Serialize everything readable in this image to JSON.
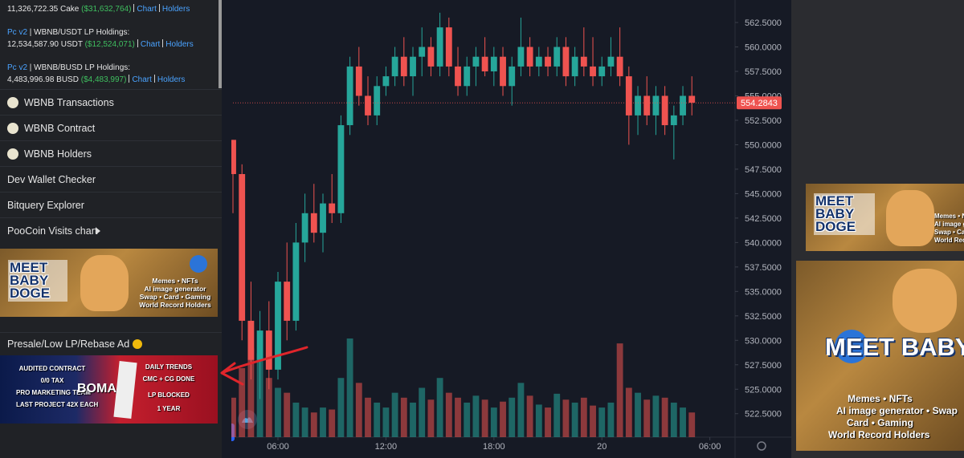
{
  "sidebar": {
    "holdings": [
      {
        "line": "11,326,722.35 Cake",
        "usd": "($31,632,764)",
        "links": [
          "Chart",
          "Holders"
        ]
      },
      {
        "source": "Pc v2",
        "title": "| WBNB/USDT LP Holdings:",
        "line": "12,534,587.90 USDT",
        "usd": "($12,524,071)",
        "links": [
          "Chart",
          "Holders"
        ]
      },
      {
        "source": "Pc v2",
        "title": "| WBNB/BUSD LP Holdings:",
        "line": "4,483,996.98 BUSD",
        "usd": "($4,483,997)",
        "links": [
          "Chart",
          "Holders"
        ]
      }
    ],
    "menu": [
      "WBNB Transactions",
      "WBNB Contract",
      "WBNB Holders",
      "Dev Wallet Checker",
      "Bitquery Explorer",
      "PooCoin Visits chart"
    ],
    "ad1": {
      "title": "MEET BABY DOGE",
      "lines": [
        "Memes • NFTs",
        "AI image generator",
        "Swap • Card • Gaming",
        "World Record Holders"
      ]
    },
    "presale_title": "Presale/Low LP/Rebase Ad",
    "ad2": {
      "left": [
        "AUDITED CONTRACT",
        "0/0 TAX",
        "PRO MARKETING TEAM",
        "LAST PROJECT 42X EACH"
      ],
      "brand": "BOMA",
      "right": [
        "DAILY TRENDS",
        "CMC + CG DONE",
        "LP BLOCKED",
        "1 YEAR"
      ]
    }
  },
  "right_ads": [
    {
      "title": "MEET BABY DOGE",
      "lines": [
        "Memes • NFTs",
        "AI image generator",
        "Swap • Card • Gaming",
        "World Record Holders"
      ]
    },
    {
      "title": "MEET BABY DOGE",
      "lines": [
        "Memes • NFTs",
        "AI image generator • Swap",
        "Card • Gaming",
        "World Record Holders"
      ]
    }
  ],
  "chart_data": {
    "type": "candlestick",
    "xlim": [
      3.5,
      31.4
    ],
    "xticks": [
      {
        "value": 6,
        "label": "06:00"
      },
      {
        "value": 12,
        "label": "12:00"
      },
      {
        "value": 18,
        "label": "18:00"
      },
      {
        "value": 24,
        "label": "20"
      },
      {
        "value": 30,
        "label": "06:00"
      }
    ],
    "ylim": [
      520.1,
      564.8
    ],
    "yticks": [
      {
        "value": 522.5,
        "label": "522.5000"
      },
      {
        "value": 525,
        "label": "525.0000"
      },
      {
        "value": 527.5,
        "label": "527.5000"
      },
      {
        "value": 530,
        "label": "530.0000"
      },
      {
        "value": 532.5,
        "label": "532.5000"
      },
      {
        "value": 535,
        "label": "535.0000"
      },
      {
        "value": 537.5,
        "label": "537.5000"
      },
      {
        "value": 540,
        "label": "540.0000"
      },
      {
        "value": 542.5,
        "label": "542.5000"
      },
      {
        "value": 545,
        "label": "545.0000"
      },
      {
        "value": 547.5,
        "label": "547.5000"
      },
      {
        "value": 550,
        "label": "550.0000"
      },
      {
        "value": 552.5,
        "label": "552.5000"
      },
      {
        "value": 555,
        "label": "555.0000"
      },
      {
        "value": 557.5,
        "label": "557.5000"
      },
      {
        "value": 560,
        "label": "560.0000"
      },
      {
        "value": 562.5,
        "label": "562.5000"
      }
    ],
    "last_price": 554.2843,
    "up_color": "#26a69a",
    "down_color": "#ef5350",
    "grid": false,
    "candles": {
      "x": [
        3.5,
        4,
        4.5,
        5,
        5.5,
        6,
        6.5,
        7,
        7.5,
        8,
        8.5,
        9,
        9.5,
        10,
        10.5,
        11,
        11.5,
        12,
        12.5,
        13,
        13.5,
        14,
        14.5,
        15,
        15.5,
        16,
        16.5,
        17,
        17.5,
        18,
        18.5,
        19,
        19.5,
        20,
        20.5,
        21,
        21.5,
        22,
        22.5,
        23,
        23.5,
        24,
        24.5,
        25,
        25.5,
        26,
        26.5,
        27,
        27.5,
        28,
        28.5,
        29
      ],
      "open": [
        550.5,
        547,
        532,
        528,
        531,
        527,
        536,
        532,
        540,
        543,
        541,
        544,
        543,
        552,
        558,
        555,
        553,
        556,
        557,
        559,
        557,
        559,
        560,
        558,
        562,
        558,
        556,
        558,
        559,
        557.5,
        559,
        556,
        558,
        560,
        558,
        559,
        558,
        560,
        557,
        559,
        558,
        557,
        558,
        559,
        557,
        553,
        555,
        553,
        555,
        552,
        553,
        555
      ],
      "high": [
        550.5,
        548,
        536,
        533,
        534,
        537,
        540,
        542,
        545,
        546,
        545,
        547,
        553,
        559,
        560,
        557,
        557,
        558,
        560,
        561,
        560,
        562,
        561,
        563.5,
        563,
        560,
        559,
        560,
        561,
        560,
        560,
        559,
        563,
        561,
        560,
        560,
        561,
        561,
        560,
        562,
        561,
        559,
        561,
        562,
        558,
        556,
        557,
        556,
        556,
        554,
        556,
        557
      ],
      "low": [
        543,
        530,
        526,
        524,
        525,
        526,
        530,
        531,
        538,
        540,
        539,
        542,
        542,
        551,
        554,
        552,
        552,
        555,
        556,
        556,
        555,
        557,
        557,
        557,
        557,
        555,
        555,
        556,
        557,
        556,
        555,
        554,
        557,
        557,
        557,
        557,
        557,
        556,
        556,
        557,
        556,
        556,
        557,
        556,
        550,
        551,
        552,
        551,
        551,
        548.5,
        552,
        553
      ],
      "close": [
        547,
        532,
        528,
        531,
        527,
        536,
        532,
        540,
        543,
        541,
        544,
        543,
        552,
        558,
        555,
        553,
        556,
        557,
        559,
        557,
        559,
        560,
        558,
        562,
        558,
        556,
        558,
        559,
        557.5,
        559,
        556,
        558,
        560,
        558,
        559,
        558,
        560,
        557,
        559,
        558,
        557,
        558,
        559,
        557,
        553,
        555,
        553,
        555,
        552,
        553,
        555,
        554.3
      ],
      "volume": [
        40,
        70,
        90,
        85,
        60,
        50,
        45,
        35,
        30,
        25,
        30,
        28,
        60,
        100,
        55,
        40,
        35,
        30,
        45,
        40,
        35,
        50,
        38,
        60,
        45,
        40,
        35,
        42,
        38,
        30,
        36,
        40,
        55,
        42,
        33,
        30,
        44,
        38,
        35,
        40,
        32,
        30,
        35,
        95,
        50,
        45,
        38,
        42,
        40,
        35,
        30,
        25
      ]
    }
  }
}
